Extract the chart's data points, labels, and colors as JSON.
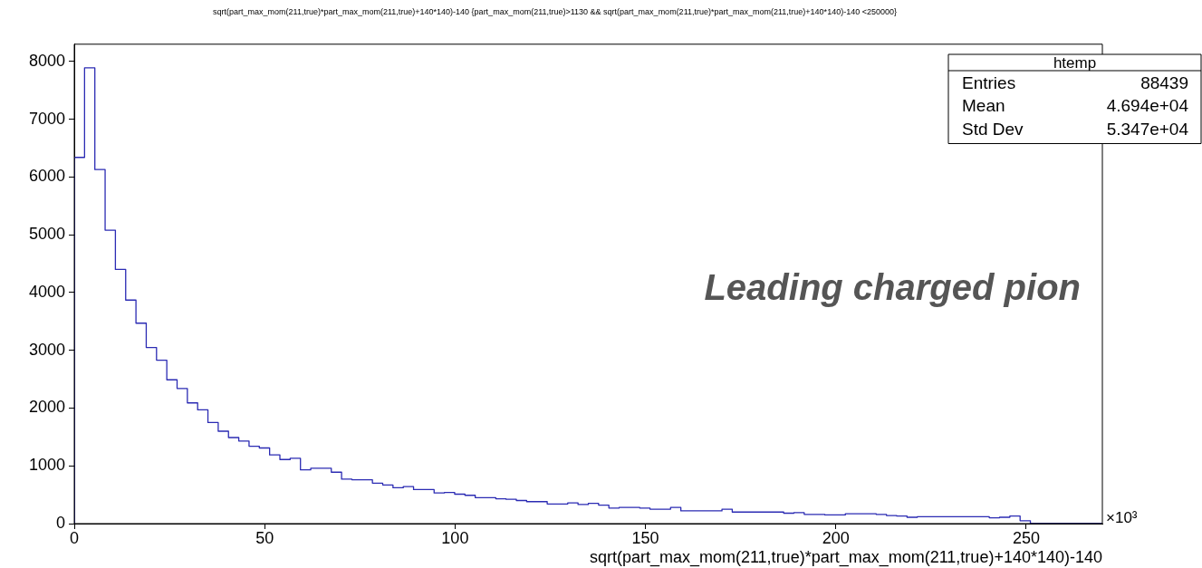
{
  "chart_data": {
    "type": "histogram",
    "title": "sqrt(part_max_mom(211,true)*part_max_mom(211,true)+140*140)-140 {part_max_mom(211,true)>1130 && sqrt(part_max_mom(211,true)*part_max_mom(211,true)+140*140)-140 <250000}",
    "xlabel": "sqrt(part_max_mom(211,true)*part_max_mom(211,true)+140*140)-140",
    "bins": [
      0,
      2.7,
      5.4,
      8.1,
      10.8,
      13.5,
      16.2,
      18.9,
      21.6,
      24.3,
      27,
      29.7,
      32.4,
      35.1,
      37.8,
      40.5,
      43.2,
      45.9,
      48.6,
      51.3,
      54,
      56.7,
      59.4,
      62.1,
      64.8,
      67.5,
      70.2,
      72.9,
      75.6,
      78.3,
      81,
      83.7,
      86.4,
      89.1,
      91.8,
      94.5,
      97.2,
      99.9,
      102.6,
      105.3,
      108,
      110.7,
      113.4,
      116.1,
      118.8,
      121.5,
      124.2,
      126.9,
      129.6,
      132.3,
      135,
      137.7,
      140.4,
      143.1,
      145.8,
      148.5,
      151.2,
      153.9,
      156.6,
      159.3,
      162,
      164.7,
      167.4,
      170.1,
      172.8,
      175.5,
      178.2,
      180.9,
      183.6,
      186.3,
      189,
      191.7,
      194.4,
      197.1,
      199.8,
      202.5,
      205.2,
      207.9,
      210.6,
      213.3,
      216,
      218.7,
      221.4,
      224.1,
      226.8,
      229.5,
      232.2,
      234.9,
      237.6,
      240.3,
      243,
      245.7,
      248.4,
      251.1,
      253.8,
      256.5,
      259.2,
      261.9,
      264.6,
      267.3,
      270
    ],
    "values": [
      6340,
      7890,
      6130,
      5080,
      4400,
      3870,
      3470,
      3050,
      2830,
      2490,
      2340,
      2090,
      1970,
      1750,
      1600,
      1490,
      1430,
      1340,
      1310,
      1190,
      1110,
      1130,
      930,
      960,
      960,
      890,
      770,
      760,
      760,
      700,
      670,
      620,
      640,
      590,
      590,
      530,
      540,
      510,
      490,
      450,
      450,
      430,
      420,
      400,
      380,
      380,
      340,
      340,
      360,
      330,
      350,
      320,
      270,
      280,
      280,
      270,
      250,
      250,
      280,
      220,
      220,
      220,
      220,
      250,
      200,
      200,
      200,
      200,
      200,
      180,
      190,
      160,
      160,
      150,
      150,
      170,
      170,
      170,
      160,
      140,
      130,
      110,
      120,
      120,
      120,
      120,
      120,
      120,
      120,
      100,
      110,
      130,
      50,
      0,
      0,
      0,
      0,
      0,
      0,
      0
    ],
    "color": "#2b2bb3",
    "xlim": [
      0,
      270
    ],
    "xticks": [
      0,
      50,
      100,
      150,
      200,
      250
    ],
    "ylim": [
      0,
      8300
    ],
    "yticks": [
      0,
      1000,
      2000,
      3000,
      4000,
      5000,
      6000,
      7000,
      8000
    ],
    "annotations": [
      "htemp",
      "Entries",
      "88439",
      "Mean",
      "4.694e+04",
      "Std Dev",
      "5.347e+04",
      "Leading charged pion",
      "×10³"
    ]
  }
}
